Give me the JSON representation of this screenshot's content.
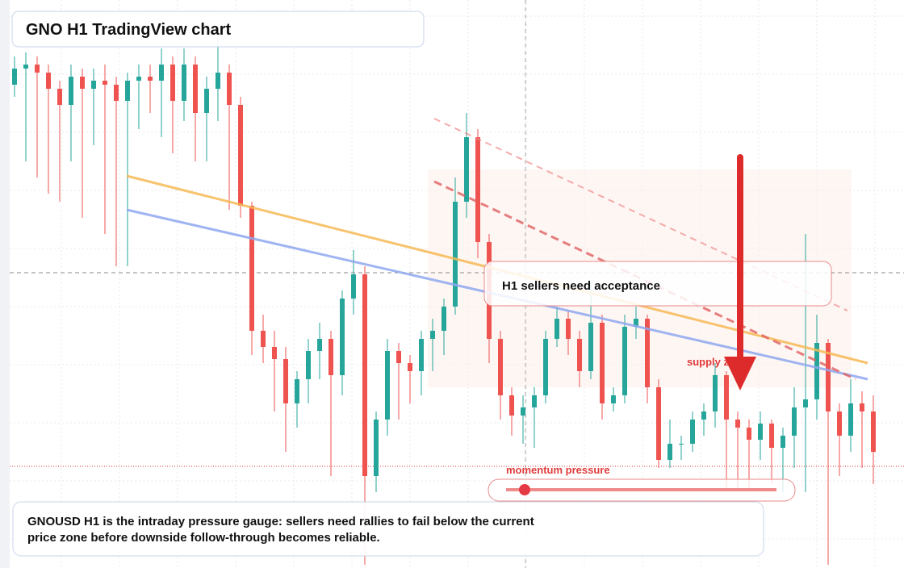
{
  "chart_data": {
    "type": "candlestick",
    "title": "GNO H1 TradingView chart",
    "annotations": [
      "H1 sellers need acceptance",
      "supply zone",
      "momentum pressure"
    ],
    "caption": "GNOUSD H1 is the intraday pressure gauge: sellers need rallies to fail below the current price zone before downside follow-through becomes reliable.",
    "ylim": [
      100,
      170
    ],
    "up_color": "#26a69a",
    "down_color": "#ef5350",
    "open": [
      159.5,
      161.5,
      162,
      161,
      159,
      157,
      160.5,
      159,
      160,
      159.5,
      157.5,
      160,
      160.5,
      160,
      162,
      157.5,
      162,
      156,
      159,
      161,
      157,
      144.5,
      129,
      127,
      125.5,
      120,
      123,
      126.5,
      128,
      123.5,
      133,
      136,
      111,
      118,
      126.5,
      125,
      124,
      128,
      129,
      132,
      145,
      153,
      140,
      128,
      121,
      118.5,
      119.5,
      121,
      128,
      130.5,
      128,
      124,
      130,
      120,
      121,
      129.5,
      130.5,
      122,
      113,
      115,
      115,
      118,
      119,
      123.5,
      118,
      117,
      115.5,
      117.5,
      114.5,
      116,
      119.5,
      120.5,
      127.5,
      119,
      116,
      120,
      119
    ],
    "high": [
      163,
      163.5,
      163,
      162,
      160,
      162,
      161.5,
      161.5,
      162,
      160.5,
      161,
      162,
      162,
      164,
      163,
      164,
      163,
      160.5,
      166,
      162,
      158,
      145,
      131,
      129,
      127,
      124,
      128,
      130,
      129,
      134,
      139,
      137,
      119,
      128,
      127.5,
      126,
      129,
      130.5,
      133,
      148,
      156,
      154,
      141,
      129,
      122,
      121,
      122,
      129,
      132,
      131.5,
      129,
      135,
      131,
      122,
      131,
      132,
      131,
      123,
      118,
      116,
      119,
      120,
      125,
      124,
      119,
      118,
      119,
      118,
      117,
      122,
      141,
      131,
      128,
      120,
      123,
      121.5,
      121
    ],
    "low": [
      158,
      150,
      148,
      146,
      145,
      150,
      143,
      152,
      141,
      137,
      137,
      154,
      156,
      153,
      151,
      155,
      150,
      150,
      155,
      144,
      143,
      126,
      125,
      119,
      114,
      117,
      120,
      123,
      111,
      121,
      131,
      100,
      109,
      116,
      118,
      120,
      121,
      124,
      126,
      131,
      143,
      138,
      125,
      118,
      116,
      115,
      114.5,
      120,
      127,
      126,
      122,
      123,
      118,
      119,
      120,
      128,
      120,
      112,
      112,
      113,
      114,
      116,
      117,
      109,
      109,
      109,
      113,
      110,
      109,
      112,
      109,
      118,
      100,
      111,
      114,
      112,
      110
    ],
    "close": [
      161.5,
      162,
      161,
      159,
      157,
      160.5,
      159,
      160,
      159.5,
      157.5,
      160,
      160.5,
      160,
      162,
      157.5,
      162,
      156,
      159,
      161,
      157,
      144.5,
      129,
      127,
      125.5,
      120,
      123,
      126.5,
      128,
      123.5,
      133,
      136,
      111,
      118,
      126.5,
      125,
      124,
      128,
      129,
      132,
      145,
      153,
      140,
      128,
      121,
      118.5,
      119.5,
      121,
      128,
      130.5,
      128,
      124,
      130,
      120,
      121,
      129.5,
      130.5,
      122,
      113,
      115,
      115,
      118,
      119,
      123.5,
      118,
      117,
      115.5,
      117.5,
      114.5,
      116,
      119.5,
      120.5,
      127.5,
      119,
      116,
      120,
      119,
      114
    ]
  }
}
